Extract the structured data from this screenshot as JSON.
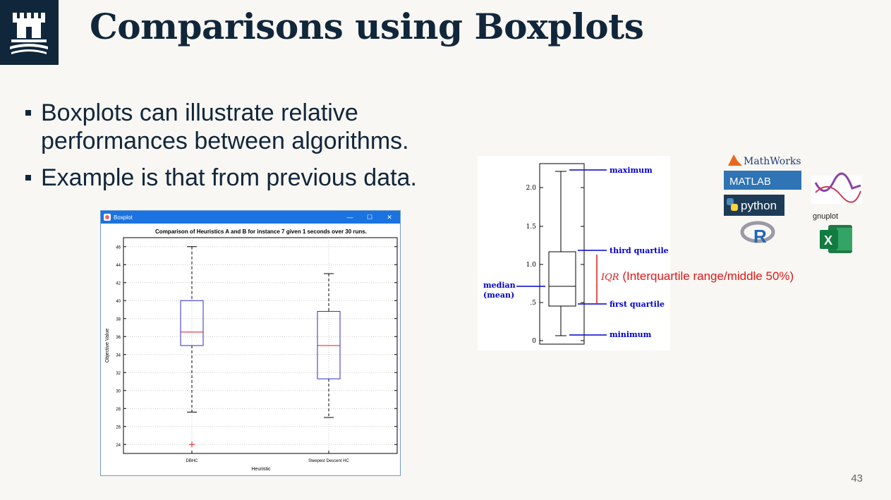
{
  "slide": {
    "title": "Comparisons using Boxplots",
    "bullets": [
      "Boxplots can illustrate relative performances between algorithms.",
      "Example is that from previous data."
    ],
    "page_number": "43"
  },
  "window": {
    "title": "Boxplot",
    "controls": [
      "—",
      "☐",
      "✕"
    ]
  },
  "chart_data": {
    "type": "box",
    "title": "Comparison of Heuristics A and B for instance 7 given 1 seconds over 30 runs.",
    "xlabel": "Heuristic",
    "ylabel": "Objective Value",
    "ylim": [
      23,
      47
    ],
    "yticks": [
      24,
      26,
      28,
      30,
      32,
      34,
      36,
      38,
      40,
      42,
      44,
      46
    ],
    "grid": true,
    "categories": [
      "DBHC",
      "Steepest Descent HC"
    ],
    "boxes": [
      {
        "label": "DBHC",
        "whisker_low": 27.6,
        "q1": 35,
        "median": 36.5,
        "q3": 40,
        "whisker_high": 46,
        "outliers": [
          24
        ]
      },
      {
        "label": "Steepest Descent HC",
        "whisker_low": 27,
        "q1": 31.3,
        "median": 35,
        "q3": 38.8,
        "whisker_high": 43,
        "outliers": []
      }
    ],
    "colors": {
      "box": "#2b2bd6",
      "median": "#e0141e",
      "outlier": "#e0141e"
    }
  },
  "diagram": {
    "yticks": [
      "0",
      ".5",
      "1.0",
      "1.5",
      "2.0"
    ],
    "labels": {
      "maximum": "maximum",
      "third_quartile": "third quartile",
      "first_quartile": "first quartile",
      "minimum": "minimum",
      "median": "median",
      "mean": "(mean)"
    },
    "iqr_symbol": "IQR",
    "iqr_text": "(Interquartile range/middle 50%)"
  },
  "logos": {
    "mathworks": "MathWorks",
    "matlab": "MATLAB",
    "python": "python",
    "r": "R",
    "gnuplot": "gnuplot",
    "excel": "X"
  }
}
